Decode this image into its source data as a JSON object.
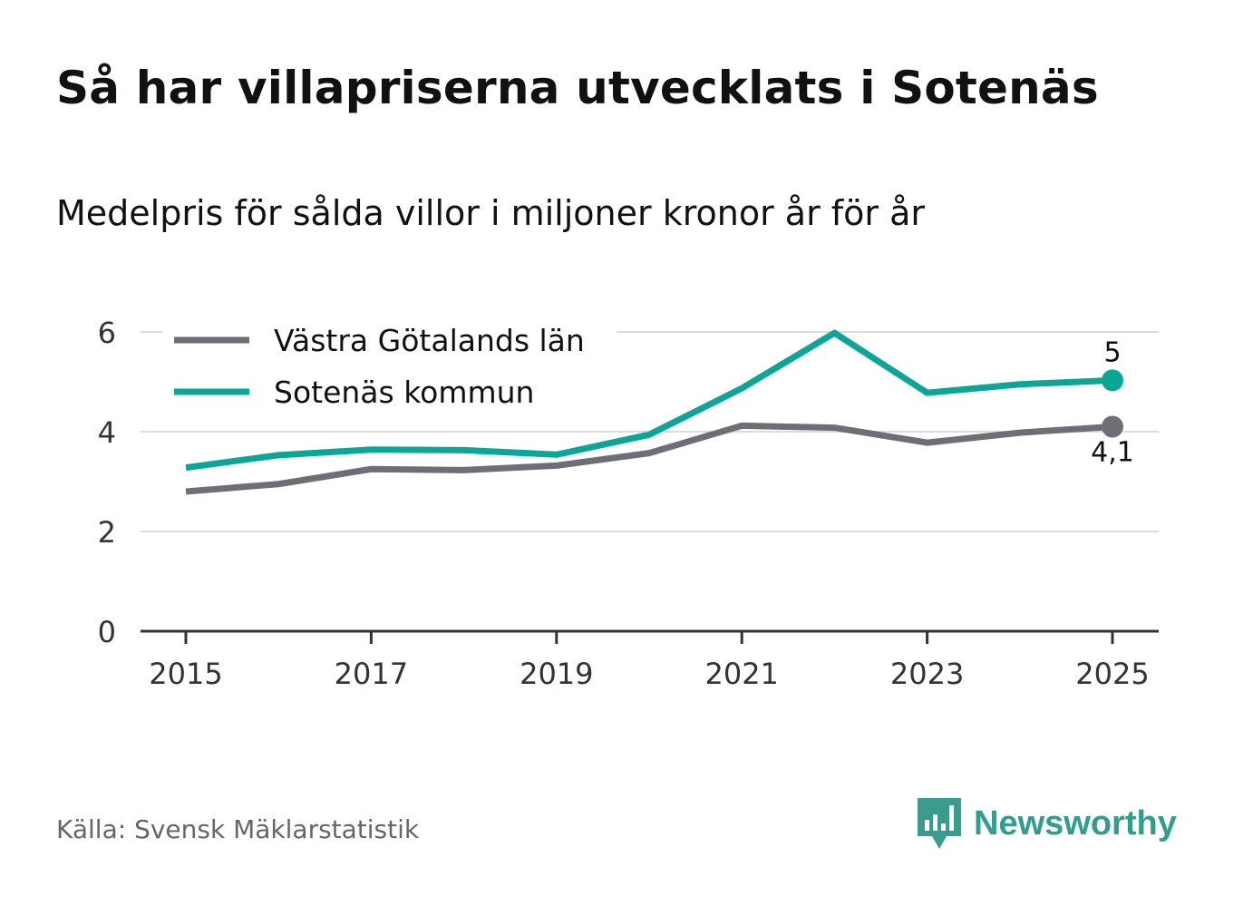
{
  "title": "Så har villapriserna utvecklats i Sotenäs",
  "subtitle": "Medelpris för sålda villor i miljoner kronor år för år",
  "source": "Källa: Svensk Mäklarstatistik",
  "brand": {
    "name": "Newsworthy",
    "icon": "newsworthy-logo-icon",
    "color": "#2f9e8c"
  },
  "chart_data": {
    "type": "line",
    "title": "Så har villapriserna utvecklats i Sotenäs",
    "subtitle": "Medelpris för sålda villor i miljoner kronor år för år",
    "xlabel": "",
    "ylabel": "",
    "x": [
      2015,
      2016,
      2017,
      2018,
      2019,
      2020,
      2021,
      2022,
      2023,
      2024,
      2025
    ],
    "x_ticks": [
      "2015",
      "2017",
      "2019",
      "2021",
      "2023",
      "2025"
    ],
    "y_ticks": [
      "0",
      "2",
      "4",
      "6"
    ],
    "ylim": [
      0,
      6
    ],
    "grid": true,
    "legend_position": "top-left",
    "series": [
      {
        "name": "Västra Götalands län",
        "color": "#6e6e76",
        "values": [
          2.8,
          2.95,
          3.25,
          3.23,
          3.32,
          3.57,
          4.12,
          4.08,
          3.78,
          3.98,
          4.1
        ],
        "end_label": "4,1",
        "end_label_position": "below"
      },
      {
        "name": "Sotenäs kommun",
        "color": "#0ca699",
        "values": [
          3.28,
          3.53,
          3.64,
          3.63,
          3.54,
          3.94,
          4.87,
          5.98,
          4.78,
          4.95,
          5.03
        ],
        "end_label": "5",
        "end_label_position": "above"
      }
    ]
  }
}
